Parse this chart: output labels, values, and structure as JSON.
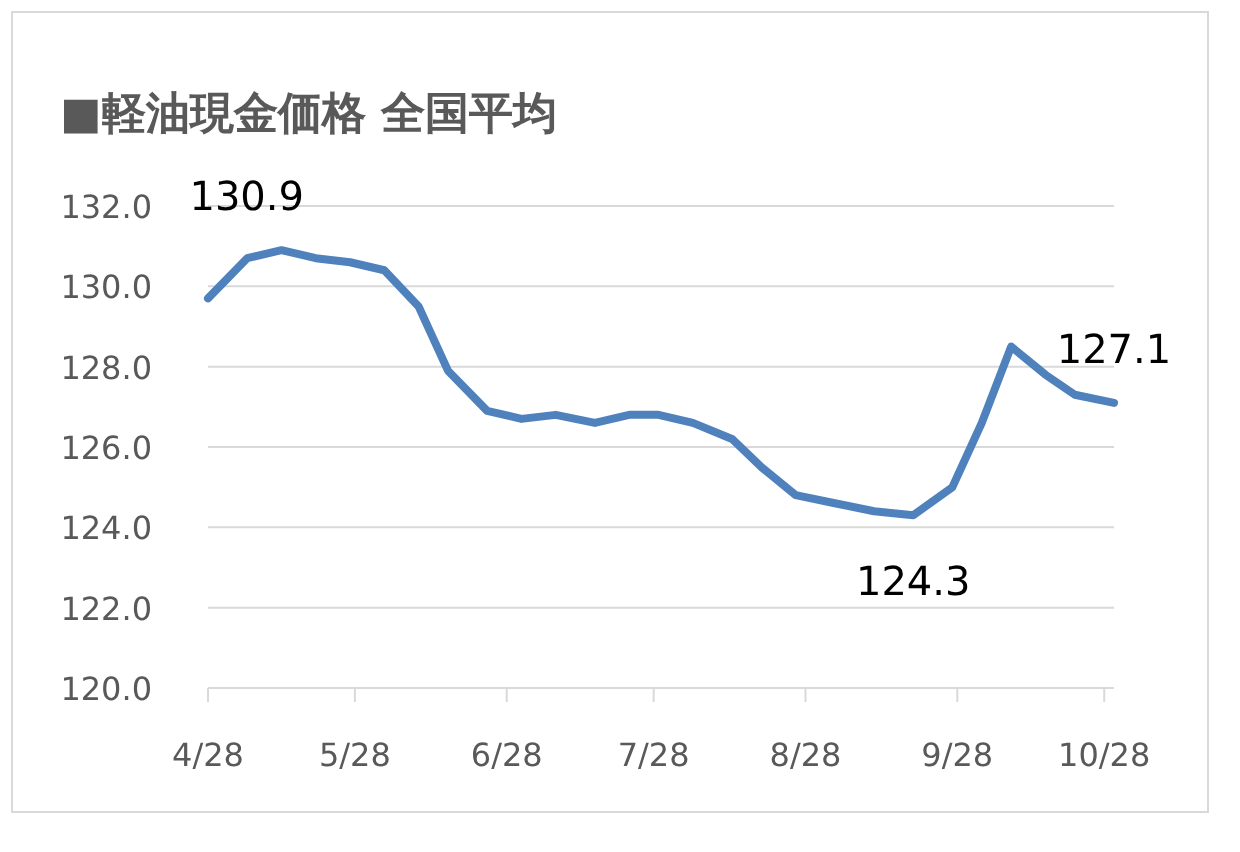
{
  "chart_data": {
    "type": "line",
    "title": "■軽油現金価格 全国平均",
    "x": [
      "--04-28",
      "--05-06",
      "--05-13",
      "--05-20",
      "--05-27",
      "--06-03",
      "--06-10",
      "--06-16",
      "--06-24",
      "--07-01",
      "--07-08",
      "--07-16",
      "--07-23",
      "--07-29",
      "--08-05",
      "--08-13",
      "--08-19",
      "--08-26",
      "--09-03",
      "--09-11",
      "--09-19",
      "--09-27",
      "--10-03",
      "--10-09",
      "--10-16",
      "--10-22",
      "--10-30"
    ],
    "series": [
      {
        "color": "#4f81bd",
        "values": [
          129.7,
          130.7,
          130.9,
          130.7,
          130.6,
          130.4,
          129.5,
          127.9,
          126.9,
          126.7,
          126.8,
          126.6,
          126.8,
          126.8,
          126.6,
          126.2,
          125.5,
          124.8,
          124.6,
          124.4,
          124.3,
          125.0,
          126.6,
          128.5,
          127.8,
          127.3,
          127.1
        ]
      }
    ],
    "xlim": [
      "--04-28",
      "--10-30"
    ],
    "xticks": [
      {
        "value": "--04-28",
        "label": "4/28"
      },
      {
        "value": "--05-28",
        "label": "5/28"
      },
      {
        "value": "--06-28",
        "label": "6/28"
      },
      {
        "value": "--07-28",
        "label": "7/28"
      },
      {
        "value": "--08-28",
        "label": "8/28"
      },
      {
        "value": "--09-28",
        "label": "9/28"
      },
      {
        "value": "--10-28",
        "label": "10/28"
      }
    ],
    "ylim": [
      120,
      132
    ],
    "yticks": [
      {
        "value": 120,
        "label": "120.0"
      },
      {
        "value": 122,
        "label": "122.0"
      },
      {
        "value": 124,
        "label": "124.0"
      },
      {
        "value": 126,
        "label": "126.0"
      },
      {
        "value": 128,
        "label": "128.0"
      },
      {
        "value": 130,
        "label": "130.0"
      },
      {
        "value": 132,
        "label": "132.0"
      }
    ],
    "grid": "y",
    "annotations": [
      {
        "text": "130.9",
        "x": "--05-13",
        "y": 130.9
      },
      {
        "text": "124.3",
        "x": "--09-19",
        "y": 124.3
      },
      {
        "text": "127.1",
        "x": "--10-30",
        "y": 127.1
      }
    ]
  }
}
